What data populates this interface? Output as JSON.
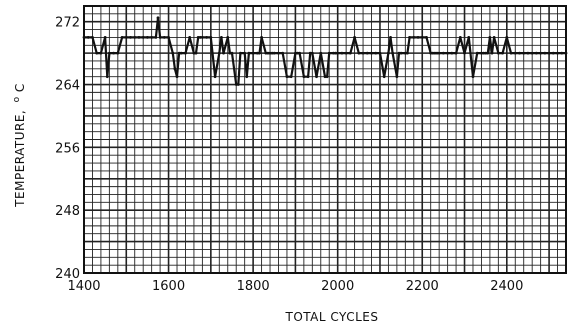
{
  "chart_data": {
    "type": "line",
    "xlabel": "TOTAL CYCLES",
    "ylabel": "TEMPERATURE,",
    "ylabel_unit_super": "o",
    "ylabel_unit": "C",
    "xlim": [
      1400,
      2540
    ],
    "ylim": [
      240,
      274
    ],
    "x_ticks": [
      1400,
      1600,
      1800,
      2000,
      2200,
      2400
    ],
    "x_tick_labels": [
      "1400",
      "1600",
      "1800",
      "2000",
      "2200",
      "2400"
    ],
    "y_ticks": [
      240,
      248,
      256,
      264,
      272
    ],
    "y_tick_labels": [
      "240",
      "248",
      "256",
      "264",
      "272"
    ],
    "grid": true,
    "series": [
      {
        "x": [
          1400,
          1410,
          1420,
          1430,
          1440,
          1450,
          1455,
          1460,
          1470,
          1480,
          1490,
          1500,
          1510,
          1520,
          1530,
          1540,
          1550,
          1560,
          1570,
          1575,
          1580,
          1590,
          1600,
          1610,
          1615,
          1620,
          1625,
          1630,
          1640,
          1650,
          1660,
          1665,
          1670,
          1675,
          1680,
          1690,
          1700,
          1710,
          1720,
          1725,
          1730,
          1740,
          1745,
          1750,
          1760,
          1765,
          1770,
          1780,
          1785,
          1790,
          1800,
          1810,
          1815,
          1820,
          1830,
          1835,
          1840,
          1845,
          1850,
          1860,
          1870,
          1880,
          1890,
          1900,
          1905,
          1910,
          1920,
          1930,
          1935,
          1940,
          1950,
          1960,
          1970,
          1975,
          1980,
          1990,
          1995,
          2000,
          2010,
          2020,
          2030,
          2040,
          2050,
          2060,
          2070,
          2080,
          2090,
          2100,
          2110,
          2120,
          2125,
          2130,
          2140,
          2145,
          2150,
          2160,
          2165,
          2170,
          2180,
          2190,
          2200,
          2210,
          2220,
          2225,
          2230,
          2235,
          2240,
          2250,
          2260,
          2270,
          2280,
          2290,
          2300,
          2310,
          2320,
          2330,
          2340,
          2345,
          2350,
          2355,
          2360,
          2365,
          2370,
          2380,
          2390,
          2400,
          2410,
          2420,
          2430,
          2440,
          2450,
          2460,
          2470,
          2480,
          2490,
          2500,
          2510,
          2520,
          2530,
          2540
        ],
        "y": [
          270,
          270,
          270,
          268,
          268,
          270,
          265,
          268,
          268,
          268,
          270,
          270,
          270,
          270,
          270,
          270,
          270,
          270,
          270,
          272.5,
          270,
          270,
          270,
          268,
          266,
          265,
          268,
          268,
          268,
          270,
          268,
          268,
          270,
          270,
          270,
          270,
          270,
          265,
          268,
          270,
          268,
          270,
          268,
          268,
          264,
          264,
          268,
          268,
          265,
          268,
          268,
          268,
          268,
          270,
          268,
          268,
          268,
          268,
          268,
          268,
          268,
          265,
          265,
          268,
          268,
          268,
          265,
          265,
          268,
          268,
          265,
          268,
          265,
          265,
          268,
          268,
          268,
          268,
          268,
          268,
          268,
          270,
          268,
          268,
          268,
          268,
          268,
          268,
          265,
          268,
          270,
          268,
          265,
          268,
          268,
          268,
          268,
          270,
          270,
          270,
          270,
          270,
          268,
          268,
          268,
          268,
          268,
          268,
          268,
          268,
          268,
          270,
          268,
          270,
          265,
          268,
          268,
          268,
          268,
          268,
          270,
          268,
          270,
          268,
          268,
          270,
          268,
          268,
          268,
          268,
          268,
          268,
          268,
          268,
          268,
          268,
          268,
          268,
          268,
          268
        ]
      }
    ]
  }
}
